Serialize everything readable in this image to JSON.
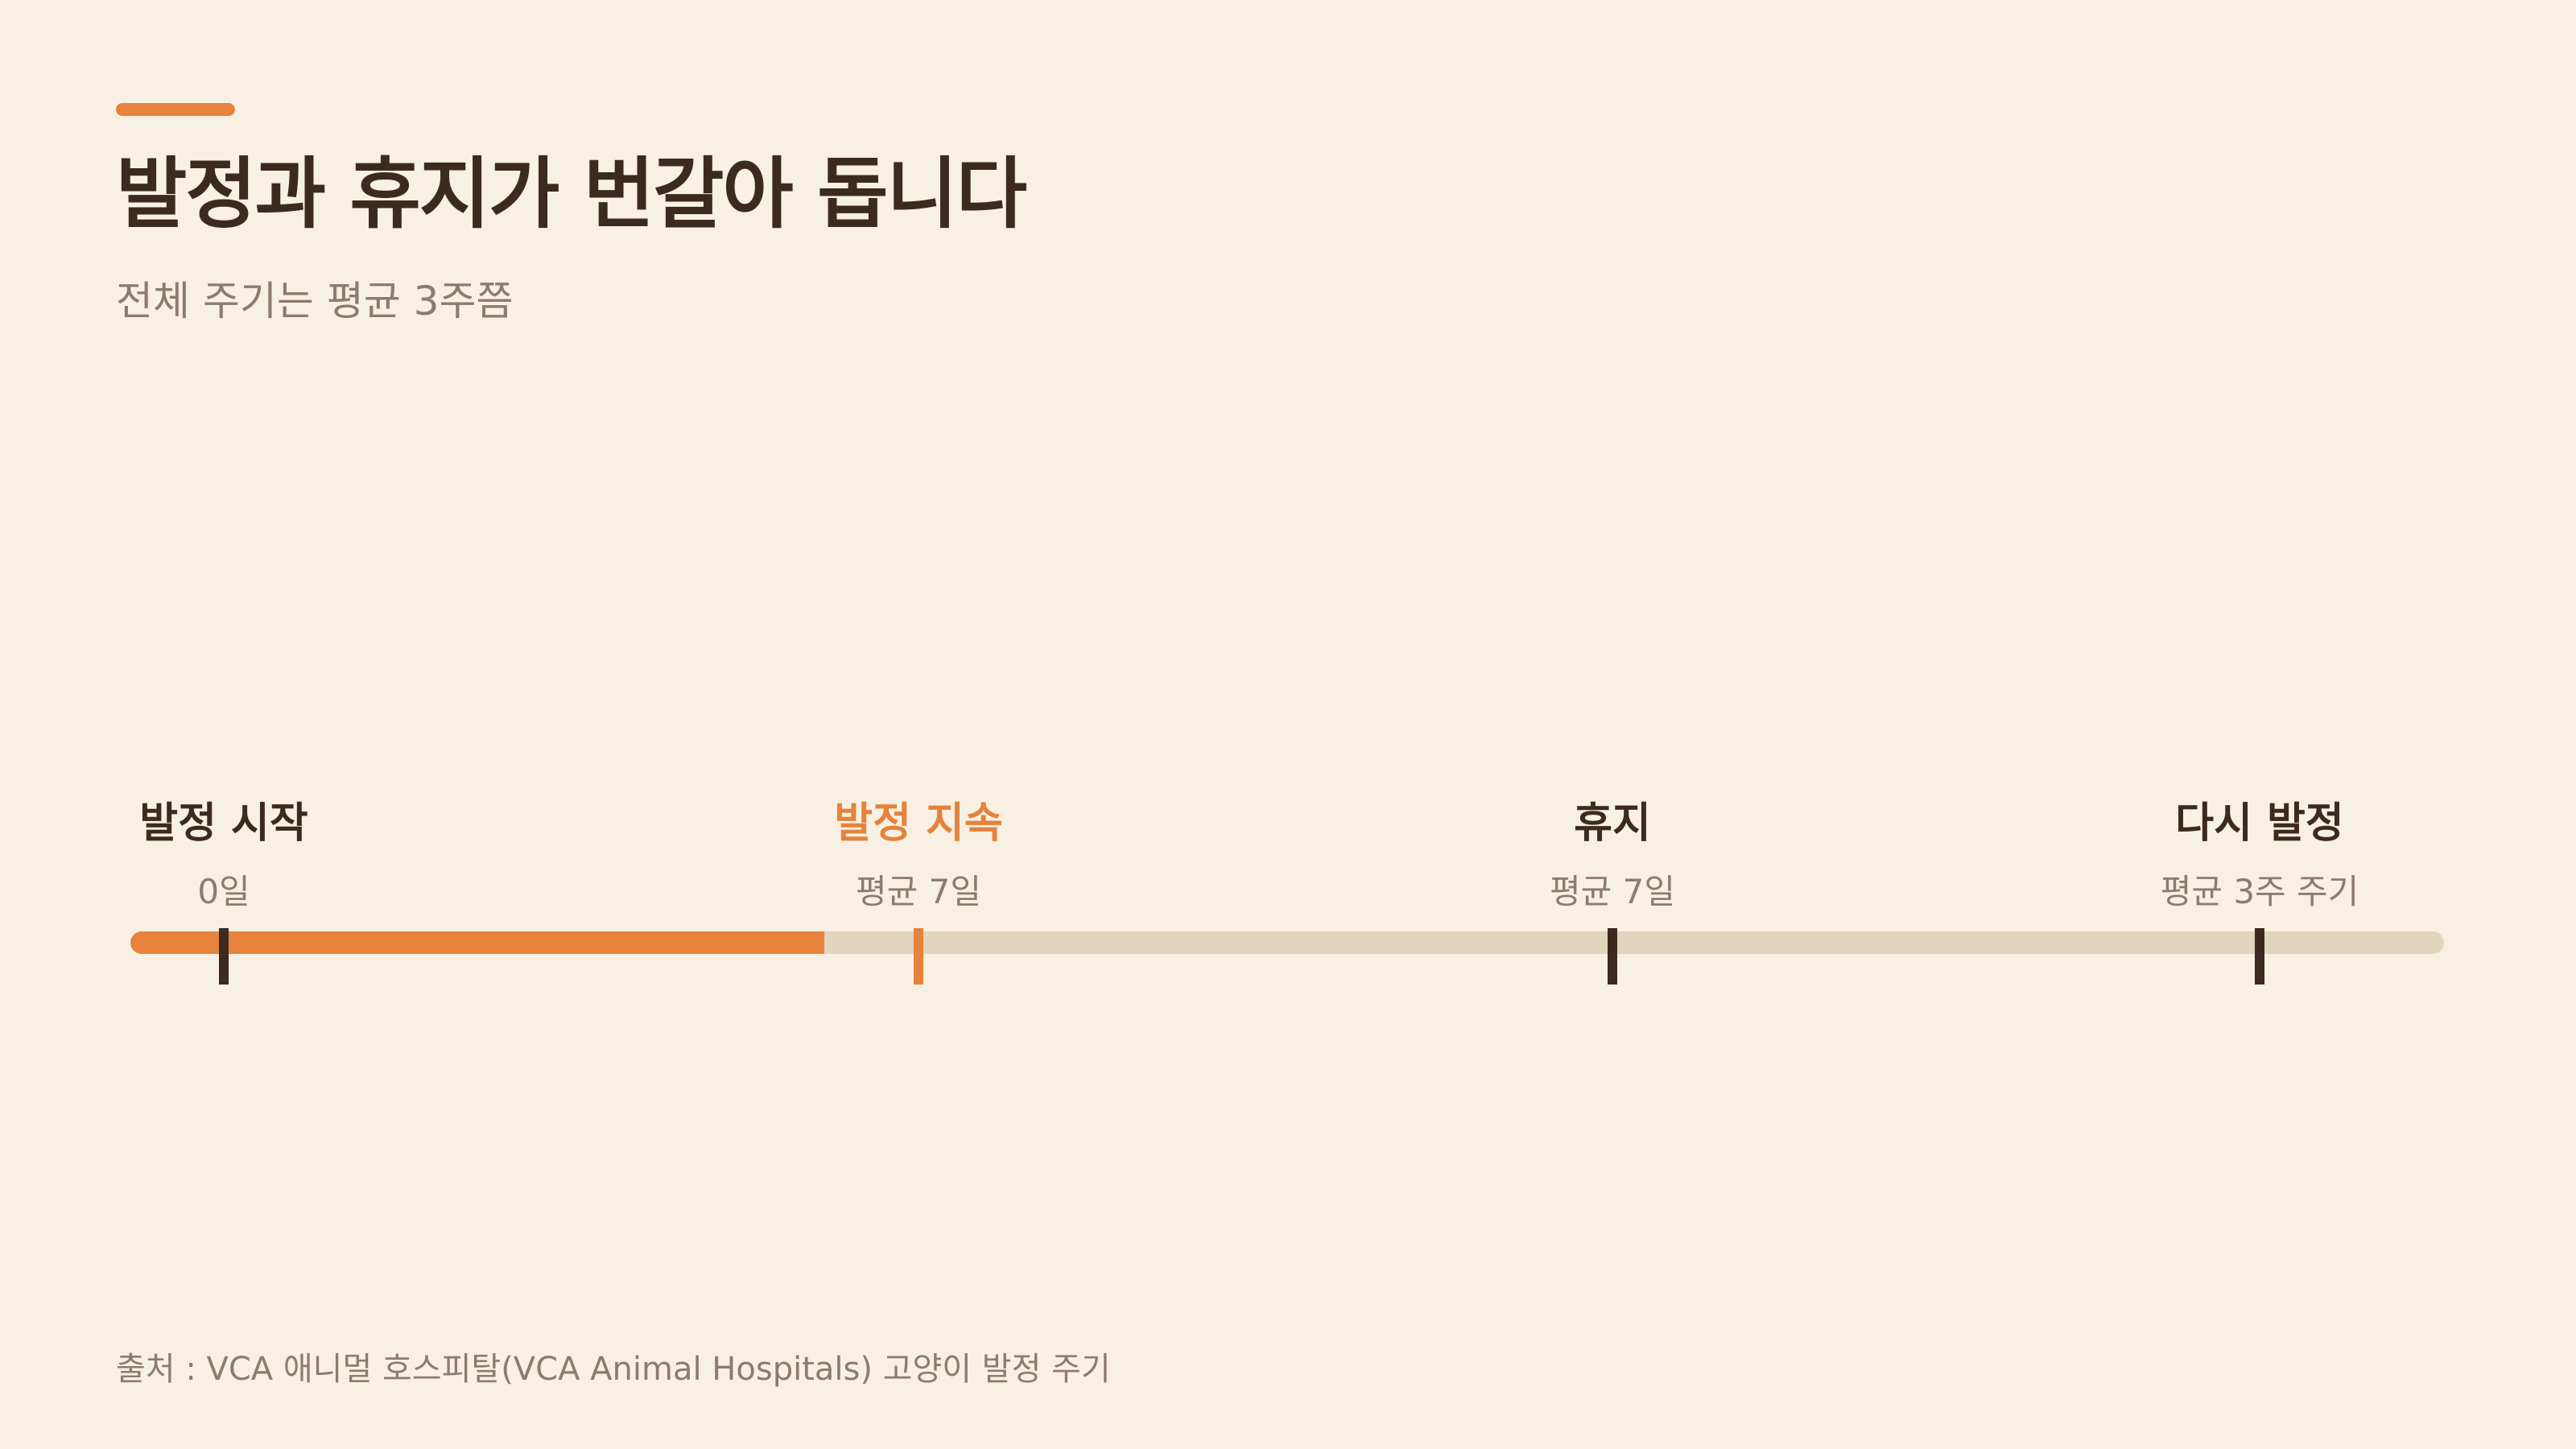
{
  "header": {
    "title": "발정과 휴지가 번갈아 돕니다",
    "subtitle": "전체 주기는 평균 3주쯤"
  },
  "timeline": {
    "progress_fraction": 0.3,
    "active_index": 1,
    "markers": [
      {
        "label": "발정 시작",
        "sublabel": "0일"
      },
      {
        "label": "발정 지속",
        "sublabel": "평균 7일"
      },
      {
        "label": "휴지",
        "sublabel": "평균 7일"
      },
      {
        "label": "다시 발정",
        "sublabel": "평균 3주 주기"
      }
    ]
  },
  "footer": {
    "source": "출처 : VCA 애니멀 호스피탈(VCA Animal Hospitals) 고양이 발정 주기"
  },
  "colors": {
    "background": "#F8F0E3",
    "accent": "#E6823C",
    "text_dark": "#3D2A1E",
    "text_muted": "#8C7B6E",
    "track": "#E2D5BD"
  }
}
